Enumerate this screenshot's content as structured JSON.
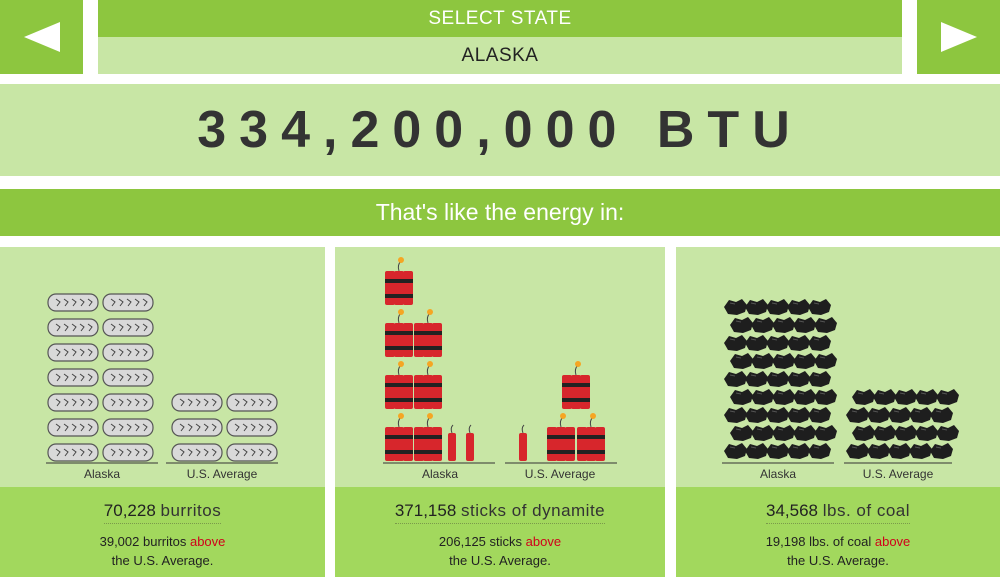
{
  "nav": {
    "prev_icon": "left-triangle-icon",
    "next_icon": "right-triangle-icon"
  },
  "selector": {
    "header": "SELECT STATE",
    "state": "ALASKA"
  },
  "energy": {
    "value": "334,200,000 BTU"
  },
  "comparison_heading": "That's like the energy in:",
  "panels": [
    {
      "icon": "burrito-icon",
      "amount": "70,228",
      "unit": "burritos",
      "diff_text": "39,002 burritos",
      "diff_word": "above",
      "diff_suffix": "the U.S. Average.",
      "label_state": "Alaska",
      "label_avg": "U.S. Average",
      "state_icon_count": 14,
      "avg_icon_count": 6
    },
    {
      "icon": "dynamite-icon",
      "amount": "371,158",
      "unit": "sticks of dynamite",
      "diff_text": "206,125 sticks",
      "diff_word": "above",
      "diff_suffix": "the U.S. Average.",
      "label_state": "Alaska",
      "label_avg": "U.S. Average",
      "state_icon_count": 7,
      "avg_icon_count": 4
    },
    {
      "icon": "coal-icon",
      "amount": "34,568",
      "unit": "lbs. of coal",
      "diff_text": "19,198 lbs. of coal",
      "diff_word": "above",
      "diff_suffix": "the U.S. Average.",
      "label_state": "Alaska",
      "label_avg": "U.S. Average",
      "state_icon_count": 45,
      "avg_icon_count": 20
    }
  ],
  "colors": {
    "dark_green": "#8dc63f",
    "light_green": "#c8e6a5",
    "mid_green": "#a2d85d",
    "above": "#d0021b"
  }
}
